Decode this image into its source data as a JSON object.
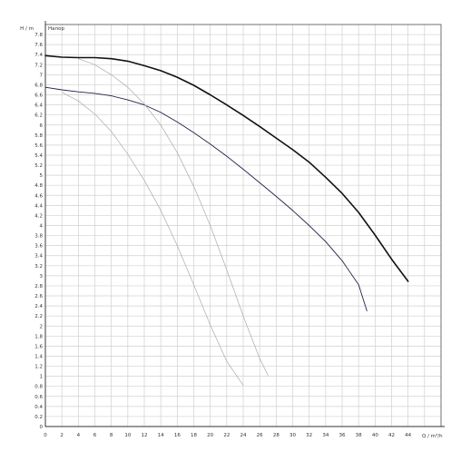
{
  "chart_data": {
    "type": "line",
    "ylabel_unit": "H / m",
    "ylabel_name": "Напор",
    "xlabel": "Q / m³/h",
    "xlim": [
      0,
      48
    ],
    "ylim": [
      0,
      8
    ],
    "x_ticks": [
      0,
      2,
      4,
      6,
      8,
      10,
      12,
      14,
      16,
      18,
      20,
      22,
      24,
      26,
      28,
      30,
      32,
      34,
      36,
      38,
      40,
      42,
      44
    ],
    "y_ticks": [
      0,
      0.2,
      0.4,
      0.6,
      0.8,
      1,
      1.2,
      1.4,
      1.6,
      1.8,
      2,
      2.2,
      2.4,
      2.6,
      2.8,
      3,
      3.2,
      3.4,
      3.6,
      3.8,
      4,
      4.2,
      4.4,
      4.6,
      4.8,
      5,
      5.2,
      5.4,
      5.6,
      5.8,
      6,
      6.2,
      6.4,
      6.6,
      6.8,
      7,
      7.2,
      7.4,
      7.6,
      7.8
    ],
    "grid": true,
    "series": [
      {
        "color": "#111111",
        "width": 1.6,
        "points": [
          [
            0,
            7.38
          ],
          [
            2,
            7.35
          ],
          [
            4,
            7.34
          ],
          [
            6,
            7.34
          ],
          [
            8,
            7.32
          ],
          [
            10,
            7.27
          ],
          [
            12,
            7.18
          ],
          [
            14,
            7.08
          ],
          [
            16,
            6.95
          ],
          [
            18,
            6.79
          ],
          [
            20,
            6.6
          ],
          [
            22,
            6.4
          ],
          [
            24,
            6.19
          ],
          [
            26,
            5.97
          ],
          [
            28,
            5.74
          ],
          [
            30,
            5.51
          ],
          [
            32,
            5.26
          ],
          [
            34,
            4.96
          ],
          [
            36,
            4.64
          ],
          [
            38,
            4.26
          ],
          [
            40,
            3.81
          ],
          [
            42,
            3.33
          ],
          [
            44,
            2.89
          ]
        ]
      },
      {
        "color": "#22224a",
        "width": 0.9,
        "points": [
          [
            0,
            6.75
          ],
          [
            2,
            6.7
          ],
          [
            4,
            6.66
          ],
          [
            6,
            6.63
          ],
          [
            8,
            6.58
          ],
          [
            10,
            6.5
          ],
          [
            12,
            6.4
          ],
          [
            14,
            6.25
          ],
          [
            16,
            6.06
          ],
          [
            18,
            5.85
          ],
          [
            20,
            5.62
          ],
          [
            22,
            5.38
          ],
          [
            24,
            5.12
          ],
          [
            26,
            4.85
          ],
          [
            28,
            4.58
          ],
          [
            30,
            4.3
          ],
          [
            32,
            4.0
          ],
          [
            34,
            3.68
          ],
          [
            36,
            3.3
          ],
          [
            38,
            2.82
          ],
          [
            39,
            2.3
          ]
        ]
      },
      {
        "color": "#aaaaaa",
        "width": 0.7,
        "points": [
          [
            4,
            7.32
          ],
          [
            6,
            7.2
          ],
          [
            8,
            7.0
          ],
          [
            10,
            6.75
          ],
          [
            12,
            6.42
          ],
          [
            14,
            6.0
          ],
          [
            16,
            5.45
          ],
          [
            18,
            4.78
          ],
          [
            20,
            4.0
          ],
          [
            22,
            3.12
          ],
          [
            24,
            2.2
          ],
          [
            26,
            1.35
          ],
          [
            27,
            1.02
          ]
        ]
      },
      {
        "color": "#aaaaaa",
        "width": 0.7,
        "points": [
          [
            2,
            6.65
          ],
          [
            4,
            6.48
          ],
          [
            6,
            6.22
          ],
          [
            8,
            5.87
          ],
          [
            10,
            5.42
          ],
          [
            12,
            4.9
          ],
          [
            14,
            4.3
          ],
          [
            16,
            3.6
          ],
          [
            18,
            2.82
          ],
          [
            20,
            2.02
          ],
          [
            22,
            1.3
          ],
          [
            24,
            0.82
          ]
        ]
      }
    ]
  }
}
